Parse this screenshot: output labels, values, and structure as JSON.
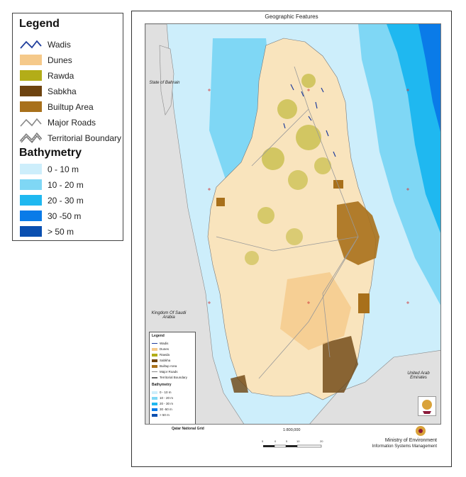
{
  "legend": {
    "title": "Legend",
    "items": [
      {
        "label": "Wadis",
        "kind": "line",
        "color": "#1f3d9c"
      },
      {
        "label": "Dunes",
        "kind": "fill",
        "color": "#f5c98a"
      },
      {
        "label": "Rawda",
        "kind": "fill",
        "color": "#b3ad18"
      },
      {
        "label": "Sabkha",
        "kind": "fill",
        "color": "#6d4310"
      },
      {
        "label": "Builtup Area",
        "kind": "fill",
        "color": "#a8701b"
      },
      {
        "label": "Major Roads",
        "kind": "line",
        "color": "#888888"
      },
      {
        "label": "Territorial Boundary",
        "kind": "boundary",
        "color": "#666666"
      }
    ],
    "bathymetry_title": "Bathymetry",
    "bathymetry": [
      {
        "label": "0 - 10 m",
        "color": "#cdeefb"
      },
      {
        "label": "10 - 20 m",
        "color": "#7fd7f5"
      },
      {
        "label": "20 - 30 m",
        "color": "#1fb8f0"
      },
      {
        "label": "30 -50 m",
        "color": "#0a7be8"
      },
      {
        "label": "> 50 m",
        "color": "#0a4fb0"
      }
    ]
  },
  "map": {
    "title": "Geographic Features",
    "labels": {
      "bahrain": "State of Bahrain",
      "saudi": "Kingdom Of Saudi Arabia",
      "uae": "United Arab Emirates"
    },
    "land_color": "#f9e4bd",
    "neighbor_color": "#e0e0e0"
  },
  "inset_legend": {
    "title": "Legend",
    "items": [
      "Wadis",
      "Dunes",
      "Rawda",
      "Sabkha",
      "Builtup Area",
      "Major Roads",
      "Territorial Boundary"
    ],
    "bathymetry_title": "Bathymetry",
    "bathymetry": [
      "0 - 10 m",
      "10 - 20 m",
      "20 - 30 m",
      "30 -50 m",
      "> 50 m"
    ]
  },
  "footer": {
    "grid_name": "Qatar National Grid",
    "scale": "1:800,000",
    "scale_ticks": [
      "5",
      "0",
      "5",
      "10",
      "20"
    ],
    "ministry": "Ministry of Environment",
    "department": "Information Systems Management"
  }
}
